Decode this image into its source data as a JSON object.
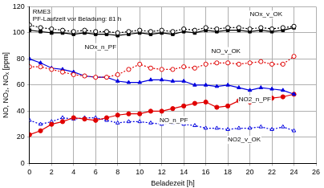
{
  "chart_data": {
    "type": "line",
    "title": "RME3",
    "subtitle": "PF-Laufzeit vor Beladung: 81 h",
    "x_label": "Beladezeit [h]",
    "y_label": "NO, NO₂, NOₓ [ppm]",
    "x": [
      0,
      1,
      2,
      3,
      4,
      5,
      6,
      7,
      8,
      9,
      10,
      11,
      12,
      13,
      14,
      15,
      16,
      17,
      18,
      19,
      20,
      21,
      22,
      23,
      24
    ],
    "series": [
      {
        "name": "NOx_v_OK",
        "color": "#000000",
        "marker": "open_circle",
        "line_style": "dotted",
        "values": [
          106,
          104,
          103,
          102,
          101,
          102,
          101,
          101,
          100,
          101,
          102,
          101,
          102,
          101,
          103,
          102,
          104,
          103,
          104,
          104,
          103,
          104,
          103,
          104,
          105
        ]
      },
      {
        "name": "NOx_n_PF",
        "color": "#000000",
        "marker": "square",
        "line_style": "solid",
        "values": [
          102,
          101,
          100,
          100,
          99,
          100,
          99,
          99,
          98,
          99,
          100,
          99,
          100,
          99,
          101,
          100,
          102,
          101,
          102,
          102,
          101,
          102,
          101,
          102,
          104
        ]
      },
      {
        "name": "NO_v_OK",
        "color": "#e00000",
        "marker": "open_circle",
        "line_style": "dotted",
        "values": [
          74,
          74,
          72,
          70,
          68,
          67,
          66,
          66,
          68,
          72,
          76,
          73,
          72,
          72,
          74,
          73,
          76,
          77,
          77,
          76,
          77,
          78,
          76,
          76,
          82
        ]
      },
      {
        "name": "NO2_n_PF",
        "color": "#0000e0",
        "marker": "triangle",
        "line_style": "solid",
        "values": [
          80,
          77,
          73,
          72,
          70,
          67,
          66,
          66,
          63,
          62,
          62,
          64,
          64,
          63,
          63,
          60,
          60,
          59,
          60,
          58,
          56,
          58,
          57,
          56,
          53
        ]
      },
      {
        "name": "NO_n_PF",
        "color": "#e00000",
        "marker": "circle",
        "line_style": "solid",
        "values": [
          22,
          25,
          30,
          32,
          35,
          34,
          33,
          35,
          37,
          38,
          38,
          40,
          40,
          42,
          44,
          46,
          47,
          43,
          44,
          48,
          47,
          48,
          50,
          51,
          53
        ]
      },
      {
        "name": "NO2_v_OK",
        "color": "#0000e0",
        "marker": "open_triangle",
        "line_style": "dotted",
        "values": [
          33,
          30,
          32,
          35,
          34,
          35,
          35,
          33,
          31,
          32,
          32,
          31,
          30,
          31,
          30,
          29,
          27,
          27,
          26,
          27,
          27,
          28,
          26,
          28,
          25
        ]
      }
    ],
    "annotations": [
      {
        "text": "NOx_v_OK",
        "x": 20,
        "y": 114
      },
      {
        "text": "NOx_n_PF",
        "x": 5,
        "y": 89
      },
      {
        "text": "NO_v_OK",
        "x": 16.5,
        "y": 86
      },
      {
        "text": "NO2_n_PF",
        "x": 19,
        "y": 49
      },
      {
        "text": "NO_n_PF",
        "x": 11.8,
        "y": 33
      },
      {
        "text": "NO2_v_OK",
        "x": 18,
        "y": 18
      }
    ],
    "xlim": [
      0,
      26
    ],
    "xticks": [
      0,
      2,
      4,
      6,
      8,
      10,
      12,
      14,
      16,
      18,
      20,
      22,
      24,
      26
    ],
    "ylim": [
      0,
      120
    ],
    "yticks": [
      0,
      20,
      40,
      60,
      80,
      100,
      120
    ],
    "grid": true
  }
}
